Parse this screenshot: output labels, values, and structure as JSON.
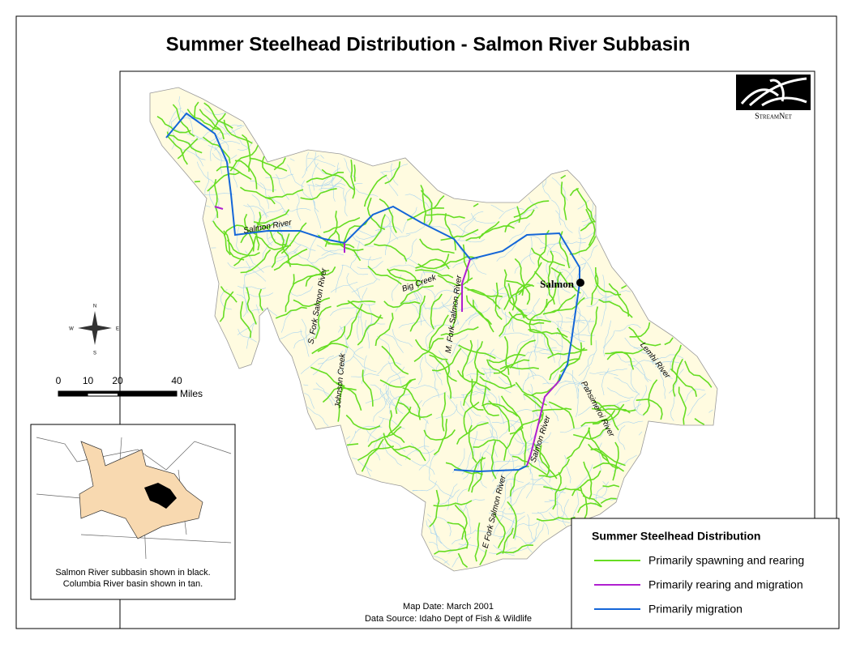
{
  "header": {
    "title": "Summer Steelhead Distribution - Salmon River Subbasin"
  },
  "logo": {
    "text": "StreamNet"
  },
  "map": {
    "city": "Salmon",
    "river_labels": [
      "Salmon River",
      "S. Fork Salmon River",
      "Johnson Creek",
      "Big Creek",
      "M. Fork Salmon River",
      "Lemhi River",
      "Pahsimeroi River",
      "Salmon River",
      "E Fork Salmon River"
    ]
  },
  "compass": [
    "N",
    "E",
    "S",
    "W"
  ],
  "scale_bar": {
    "ticks": [
      0,
      10,
      20,
      40
    ],
    "unit": "Miles"
  },
  "inset": {
    "caption": [
      "Salmon River subbasin shown in black.",
      "Columbia River basin shown in tan."
    ]
  },
  "legend": {
    "title": "Summer Steelhead Distribution",
    "items": [
      {
        "label": "Primarily spawning and rearing",
        "color": "#66dd22"
      },
      {
        "label": "Primarily rearing and migration",
        "color": "#b020d0"
      },
      {
        "label": "Primarily migration",
        "color": "#1466d8"
      }
    ]
  },
  "footer": {
    "map_date": "Map Date: March 2001",
    "data_source": "Data Source: Idaho Dept of Fish & Wildlife"
  }
}
